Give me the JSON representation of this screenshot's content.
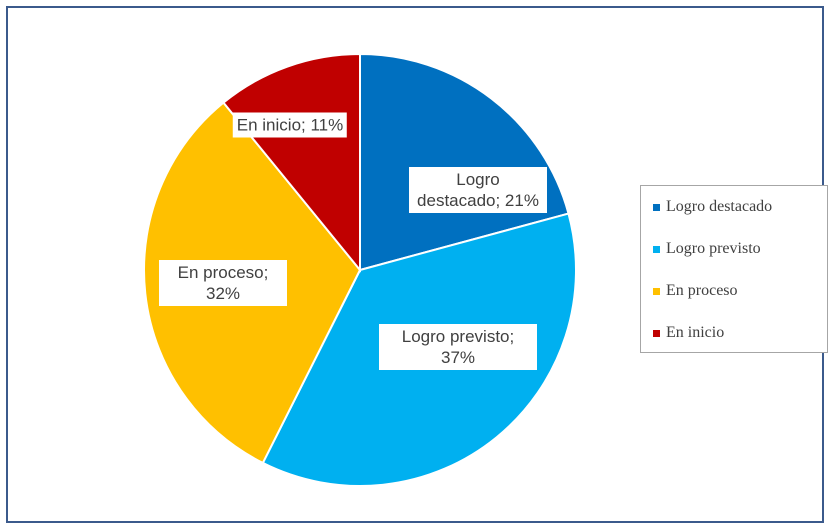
{
  "chart_data": {
    "type": "pie",
    "categories": [
      "Logro destacado",
      "Logro previsto",
      "En proceso",
      "En inicio"
    ],
    "values": [
      21,
      37,
      32,
      11
    ],
    "value_labels": [
      "Logro destacado; 21%",
      "Logro previsto; 37%",
      "En proceso; 32%",
      "En inicio; 11%"
    ],
    "colors": [
      "#0070c0",
      "#00b0f0",
      "#ffc000",
      "#c00000"
    ],
    "legend": "right"
  }
}
